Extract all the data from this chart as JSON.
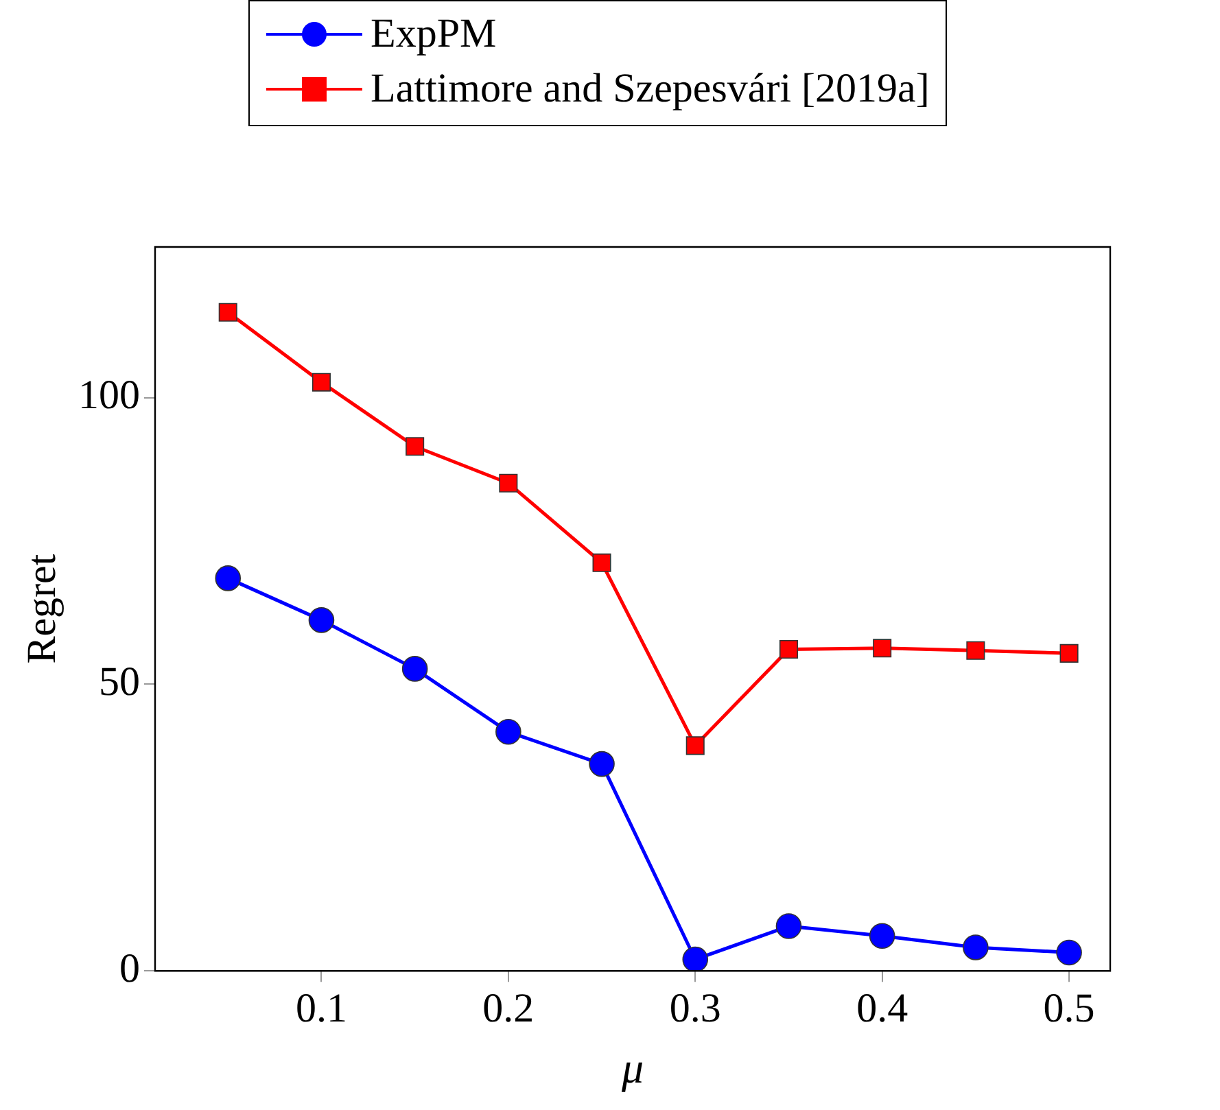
{
  "chart_data": {
    "type": "line",
    "xlabel": "μ",
    "ylabel": "Regret",
    "x": [
      0.05,
      0.1,
      0.15,
      0.2,
      0.25,
      0.3,
      0.35,
      0.4,
      0.45,
      0.5
    ],
    "series": [
      {
        "name": "ExpPM",
        "color": "#0000ff",
        "marker": "circle",
        "values": [
          68.5,
          61.2,
          52.7,
          41.7,
          36.1,
          2,
          7.8,
          6.1,
          4.1,
          3.2
        ]
      },
      {
        "name": "Lattimore and Szepesvári [2019a]",
        "color": "#ff0000",
        "marker": "square",
        "values": [
          114.9,
          102.7,
          91.5,
          85.1,
          71.2,
          39.3,
          56.1,
          56.3,
          55.9,
          55.4
        ]
      }
    ],
    "xlim": [
      0.011,
      0.522
    ],
    "xticks": [
      0.1,
      0.2,
      0.3,
      0.4,
      0.5
    ],
    "ylim": [
      0,
      126.3
    ],
    "yticks": [
      0,
      50,
      100
    ],
    "grid": false,
    "legend": "top",
    "line_style": "solid"
  }
}
